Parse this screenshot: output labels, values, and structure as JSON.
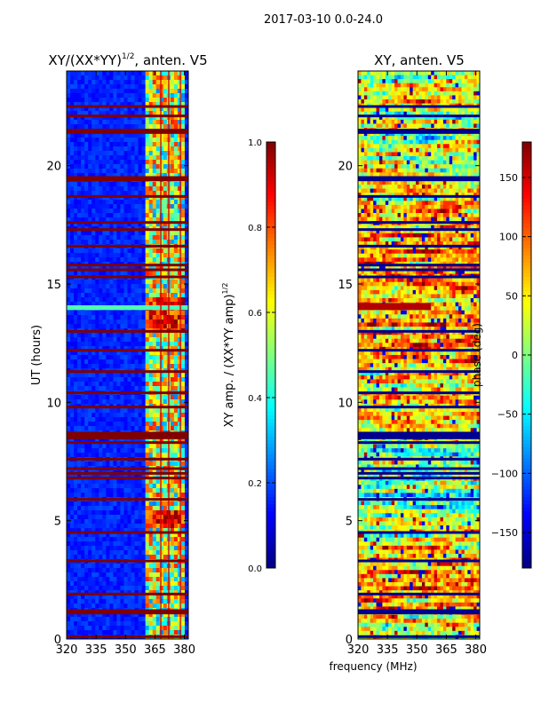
{
  "suptitle": "2017-03-10 0.0-24.0",
  "shared_xlabel": "frequency (MHz)",
  "chart_data": [
    {
      "type": "heatmap",
      "title_main": "XY/(XX*YY)",
      "title_sup": "1/2",
      "title_rest": ", anten. V5",
      "xlabel": "",
      "ylabel": "UT (hours)",
      "xlim": [
        320,
        382
      ],
      "ylim": [
        0,
        24
      ],
      "xticks": [
        320,
        335,
        350,
        365,
        380
      ],
      "yticks": [
        0,
        5,
        10,
        15,
        20
      ],
      "colormap": "jet",
      "colorbar": {
        "label_main": "XY amp. / (XX*YY amp)",
        "label_sup": "1/2",
        "range": [
          0.0,
          1.0
        ],
        "ticks": [
          "0.0",
          "0.2",
          "0.4",
          "0.6",
          "0.8",
          "1.0"
        ]
      },
      "features": {
        "background_level": 0.12,
        "rfi_band_mhz": [
          360,
          380
        ],
        "rfi_level": 0.55,
        "bright_column_mhz": [
          368,
          372,
          378
        ],
        "bright_row_hours": [
          13.9,
          14.1
        ],
        "flagged_rows_hours": [
          0.1,
          1.1,
          1.2,
          1.9,
          3.3,
          4.5,
          5.9,
          6.8,
          7.0,
          7.2,
          7.6,
          8.3,
          8.5,
          8.6,
          8.7,
          9.8,
          10.4,
          11.3,
          12.2,
          13.0,
          15.3,
          15.6,
          15.8,
          16.6,
          17.3,
          17.6,
          18.7,
          19.4,
          19.5,
          21.4,
          21.5,
          22.1,
          22.5
        ]
      }
    },
    {
      "type": "heatmap",
      "title_main": "XY, anten. V5",
      "xlabel": "frequency (MHz)",
      "ylabel": "",
      "xlim": [
        320,
        382
      ],
      "ylim": [
        0,
        24
      ],
      "xticks": [
        320,
        335,
        350,
        365,
        380
      ],
      "yticks": [
        0,
        5,
        10,
        15,
        20
      ],
      "colormap": "jet",
      "colorbar": {
        "label_main": "phase (deg)",
        "range": [
          -180,
          180
        ],
        "ticks": [
          "−150",
          "−100",
          "−50",
          "0",
          "50",
          "100",
          "150"
        ],
        "tick_values": [
          -150,
          -100,
          -50,
          0,
          50,
          100,
          150
        ]
      },
      "features": {
        "phase_mean_deg": 0,
        "flagged_rows_hours": [
          0.1,
          1.1,
          1.2,
          1.9,
          3.3,
          4.5,
          5.9,
          6.8,
          7.0,
          7.2,
          7.6,
          8.3,
          8.5,
          8.6,
          8.7,
          9.8,
          10.4,
          11.3,
          12.2,
          13.0,
          15.3,
          15.6,
          15.8,
          16.6,
          17.3,
          17.6,
          18.7,
          19.4,
          19.5,
          21.4,
          21.5,
          22.1,
          22.5
        ]
      }
    }
  ]
}
